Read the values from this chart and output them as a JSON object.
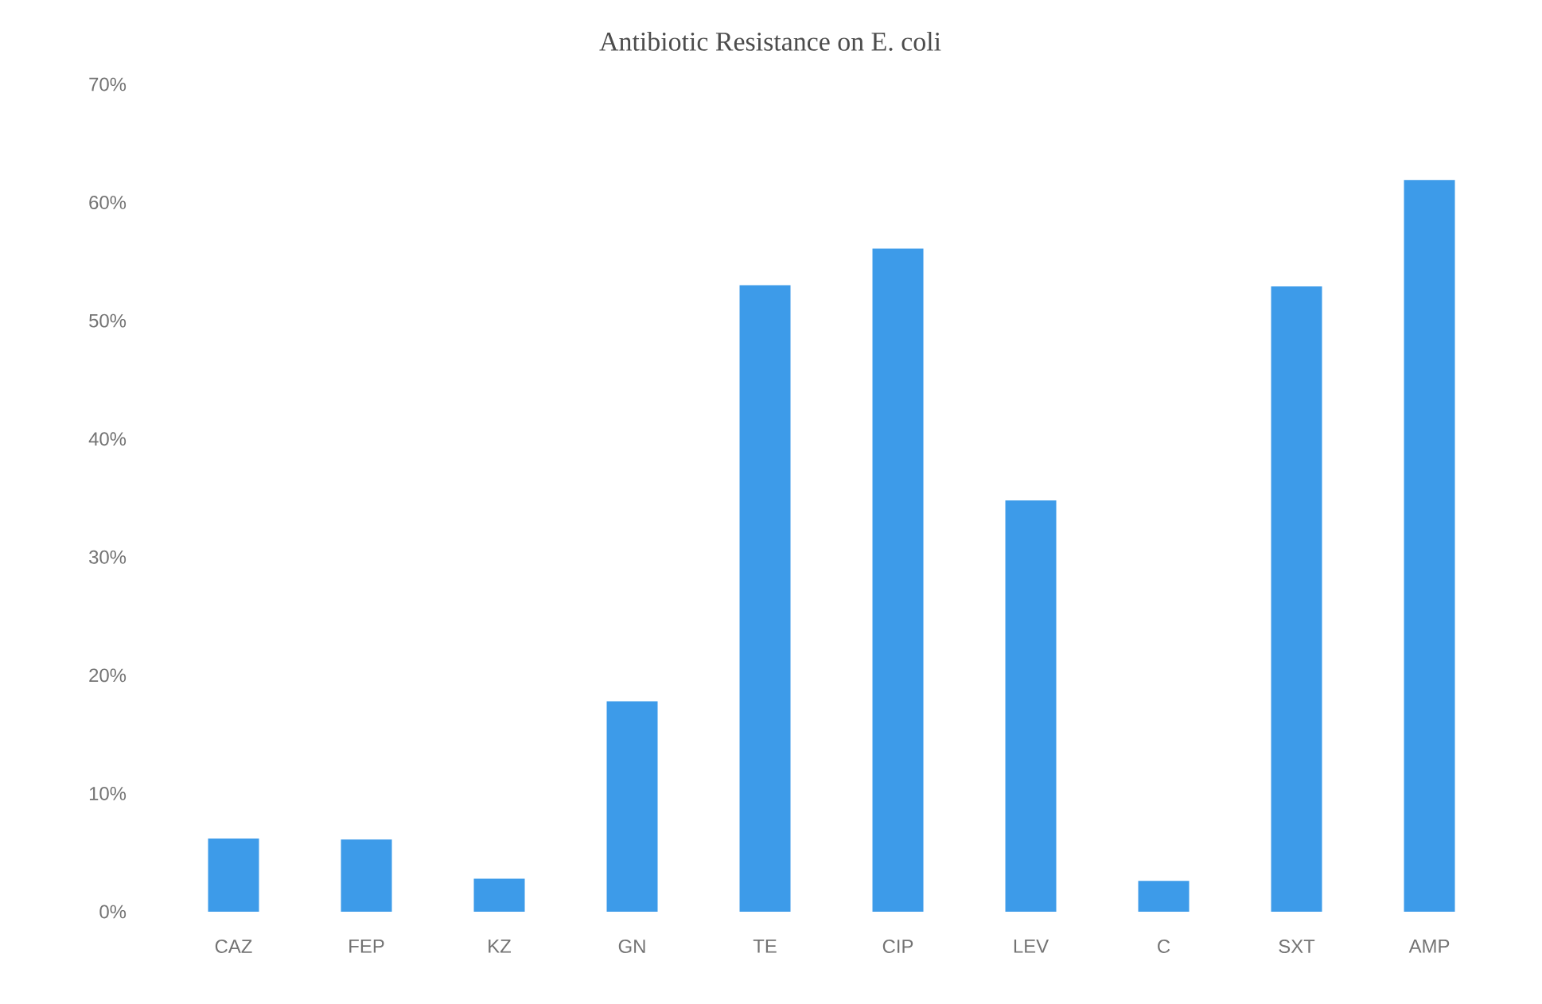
{
  "chart_data": {
    "type": "bar",
    "title": "Antibiotic Resistance on E. coli",
    "categories": [
      "CAZ",
      "FEP",
      "KZ",
      "GN",
      "TE",
      "CIP",
      "LEV",
      "C",
      "SXT",
      "AMP"
    ],
    "values": [
      6.2,
      6.1,
      2.8,
      17.8,
      53.0,
      56.1,
      34.8,
      2.6,
      52.9,
      61.9
    ],
    "color": "#3d9be9",
    "ylim": [
      0,
      70
    ],
    "yticks": [
      {
        "value": 0,
        "label": "0%"
      },
      {
        "value": 10,
        "label": "10%"
      },
      {
        "value": 20,
        "label": "20%"
      },
      {
        "value": 30,
        "label": "30%"
      },
      {
        "value": 40,
        "label": "40%"
      },
      {
        "value": 50,
        "label": "50%"
      },
      {
        "value": 60,
        "label": "60%"
      },
      {
        "value": 70,
        "label": "70%"
      }
    ],
    "grid": false
  }
}
